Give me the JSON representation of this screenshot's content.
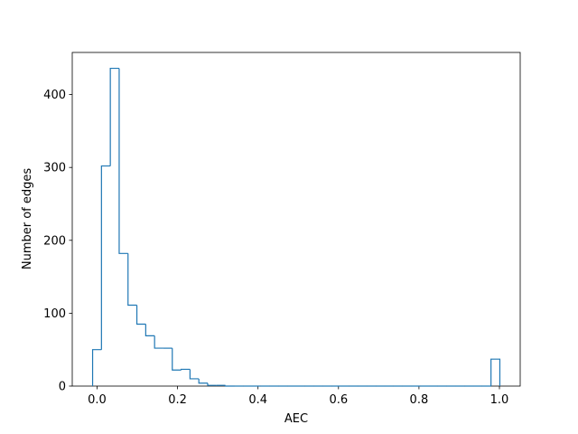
{
  "chart_data": {
    "type": "histogram",
    "xlabel": "AEC",
    "ylabel": "Number of edges",
    "bins": [
      -0.011,
      0.011,
      0.033,
      0.055,
      0.077,
      0.099,
      0.121,
      0.143,
      0.165,
      0.187,
      0.209,
      0.231,
      0.253,
      0.275,
      0.297,
      0.319,
      0.341,
      0.363,
      0.385,
      0.407,
      0.429,
      0.451,
      0.473,
      0.495,
      0.517,
      0.539,
      0.561,
      0.583,
      0.605,
      0.627,
      0.649,
      0.671,
      0.693,
      0.715,
      0.737,
      0.759,
      0.781,
      0.803,
      0.825,
      0.847,
      0.869,
      0.891,
      0.913,
      0.935,
      0.957,
      0.979,
      1.001
    ],
    "values": [
      50,
      302,
      436,
      182,
      111,
      85,
      69,
      52,
      52,
      22,
      23,
      10,
      4,
      1,
      1,
      0,
      0,
      0,
      0,
      0,
      0,
      0,
      0,
      0,
      0,
      0,
      0,
      0,
      0,
      0,
      0,
      0,
      0,
      0,
      0,
      0,
      0,
      0,
      0,
      0,
      0,
      0,
      0,
      0,
      0,
      37
    ],
    "color": "#1f77b4",
    "xlim": [
      -0.0616,
      1.0516
    ],
    "ylim": [
      0,
      457.8
    ],
    "xticks": [
      {
        "value": 0,
        "label": "0.0"
      },
      0.2,
      0.4,
      0.6,
      0.8,
      {
        "value": 1,
        "label": "1.0"
      }
    ],
    "yticks": [
      0,
      100,
      200,
      300,
      400
    ]
  }
}
